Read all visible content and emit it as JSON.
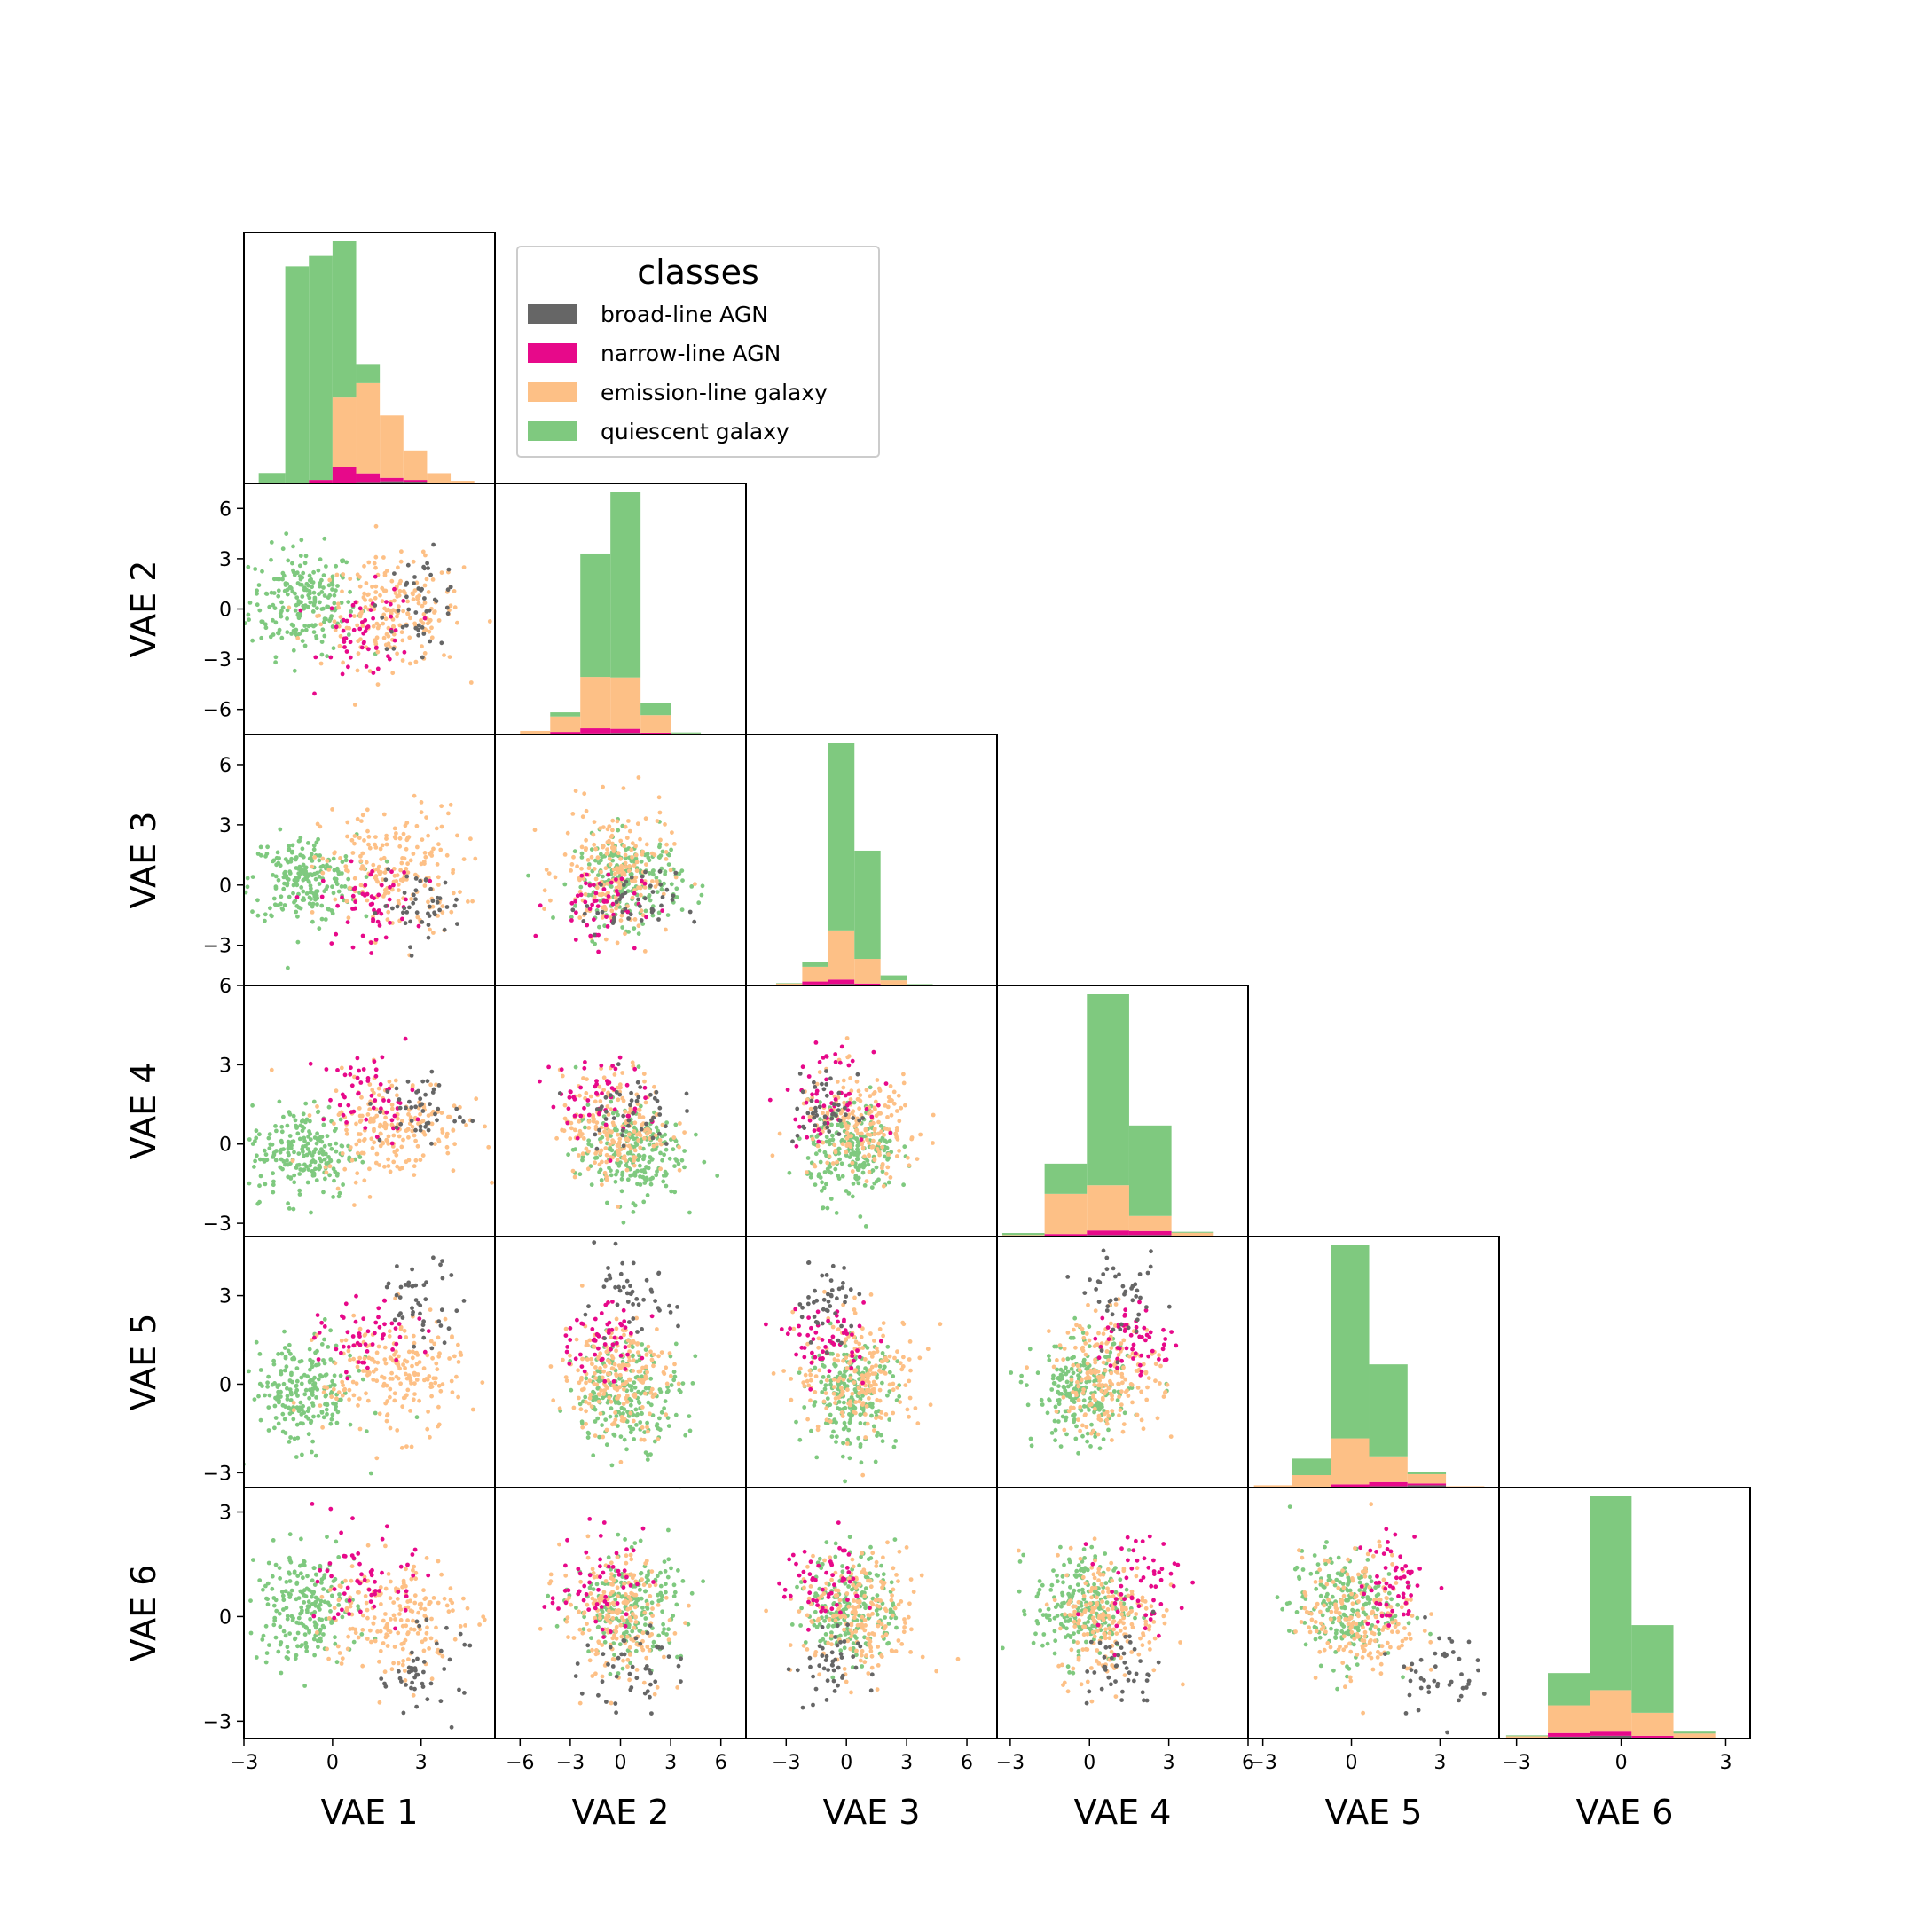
{
  "chart_data": {
    "type": "corner",
    "variables": [
      "VAE 1",
      "VAE 2",
      "VAE 3",
      "VAE 4",
      "VAE 5",
      "VAE 6"
    ],
    "ranges": [
      [
        -3,
        5.5
      ],
      [
        -7.5,
        7.5
      ],
      [
        -5,
        7.5
      ],
      [
        -3.5,
        6
      ],
      [
        -3.5,
        5
      ],
      [
        -3.5,
        3.7
      ]
    ],
    "ticks": [
      [
        -3,
        0,
        3
      ],
      [
        -6,
        -3,
        0,
        3,
        6
      ],
      [
        -3,
        0,
        3,
        6
      ],
      [
        -3,
        0,
        3,
        6
      ],
      [
        -3,
        0,
        3
      ],
      [
        -3,
        0,
        3
      ]
    ],
    "legend": {
      "title": "classes",
      "entries": [
        {
          "name": "broad-line AGN",
          "color": "#666666"
        },
        {
          "name": "narrow-line AGN",
          "color": "#e7098a"
        },
        {
          "name": "emission-line galaxy",
          "color": "#fdc086"
        },
        {
          "name": "quiescent galaxy",
          "color": "#7fc97f"
        }
      ]
    },
    "class_centers": {
      "quiescent galaxy": [
        -1.0,
        0.5,
        0.3,
        -0.3,
        -0.3,
        0.3
      ],
      "emission-line galaxy": [
        2.0,
        -0.3,
        0.7,
        0.7,
        0.3,
        0.0
      ],
      "narrow-line AGN": [
        1.2,
        -1.5,
        -1.0,
        1.8,
        1.5,
        1.0
      ],
      "broad-line AGN": [
        3.0,
        0.5,
        -1.0,
        1.3,
        2.8,
        -1.5
      ]
    },
    "histograms": [
      {
        "variable": "VAE 1",
        "bin_edges": [
          -2.5,
          -1.6,
          -0.8,
          0,
          0.8,
          1.6,
          2.4,
          3.2,
          4.0,
          4.8
        ],
        "counts": {
          "quiescent galaxy": [
            60,
            1250,
            1290,
            900,
            110,
            0,
            0,
            0,
            0
          ],
          "emission-line galaxy": [
            0,
            0,
            0,
            400,
            520,
            360,
            170,
            55,
            15
          ],
          "narrow-line AGN": [
            0,
            0,
            20,
            90,
            50,
            20,
            10,
            0,
            0
          ],
          "broad-line AGN": [
            0,
            0,
            0,
            5,
            8,
            12,
            10,
            4,
            0
          ]
        }
      },
      {
        "variable": "VAE 2",
        "bin_edges": [
          -6,
          -4.2,
          -2.4,
          -0.6,
          1.2,
          3.0,
          4.8
        ],
        "counts": {
          "quiescent galaxy": [
            0,
            40,
            1200,
            1800,
            120,
            10
          ],
          "emission-line galaxy": [
            30,
            150,
            500,
            500,
            170,
            10
          ],
          "narrow-line AGN": [
            5,
            20,
            50,
            40,
            10,
            0
          ],
          "broad-line AGN": [
            0,
            5,
            10,
            15,
            8,
            0
          ]
        }
      },
      {
        "variable": "VAE 3",
        "bin_edges": [
          -3.5,
          -2.2,
          -0.9,
          0.4,
          1.7,
          3.0,
          4.3
        ],
        "counts": {
          "quiescent galaxy": [
            5,
            50,
            1900,
            1100,
            50,
            5
          ],
          "emission-line galaxy": [
            15,
            150,
            500,
            250,
            50,
            10
          ],
          "narrow-line AGN": [
            5,
            30,
            45,
            15,
            3,
            0
          ],
          "broad-line AGN": [
            0,
            10,
            15,
            5,
            0,
            0
          ]
        }
      },
      {
        "variable": "VAE 4",
        "bin_edges": [
          -3.3,
          -1.7,
          -0.1,
          1.5,
          3.1,
          4.7
        ],
        "counts": {
          "quiescent galaxy": [
            20,
            300,
            1900,
            900,
            10
          ],
          "emission-line galaxy": [
            15,
            400,
            450,
            150,
            30
          ],
          "narrow-line AGN": [
            0,
            20,
            45,
            40,
            5
          ],
          "broad-line AGN": [
            0,
            5,
            15,
            15,
            2
          ]
        }
      },
      {
        "variable": "VAE 5",
        "bin_edges": [
          -3.3,
          -2.0,
          -0.7,
          0.6,
          1.9,
          3.2,
          4.5
        ],
        "counts": {
          "quiescent galaxy": [
            0,
            180,
            2100,
            1000,
            20,
            0
          ],
          "emission-line galaxy": [
            25,
            130,
            500,
            280,
            100,
            10
          ],
          "narrow-line AGN": [
            0,
            5,
            30,
            45,
            20,
            0
          ],
          "broad-line AGN": [
            0,
            0,
            5,
            15,
            25,
            5
          ]
        }
      },
      {
        "variable": "VAE 6",
        "bin_edges": [
          -3.3,
          -2.1,
          -0.9,
          0.3,
          1.5,
          2.7
        ],
        "counts": {
          "quiescent galaxy": [
            10,
            350,
            2100,
            950,
            20
          ],
          "emission-line galaxy": [
            20,
            300,
            450,
            250,
            50
          ],
          "narrow-line AGN": [
            3,
            40,
            45,
            20,
            3
          ],
          "broad-line AGN": [
            2,
            20,
            30,
            10,
            2
          ]
        }
      }
    ]
  }
}
